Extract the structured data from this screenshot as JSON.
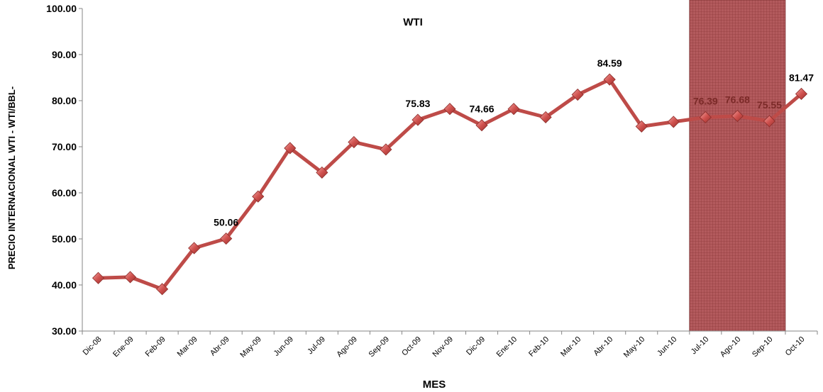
{
  "chart_data": {
    "type": "line",
    "title": "WTI",
    "xlabel": "MES",
    "ylabel": "PRECIO INTERNACIONAL WTI - WTI/BBL-",
    "ylim": [
      30,
      100
    ],
    "yticks": [
      "30.00",
      "40.00",
      "50.00",
      "60.00",
      "70.00",
      "80.00",
      "90.00",
      "100.00"
    ],
    "grid": false,
    "categories": [
      "Dic-08",
      "Ene-09",
      "Feb-09",
      "Mar-09",
      "Abr-09",
      "May-09",
      "Jun-09",
      "Jul-09",
      "Ago-09",
      "Sep-09",
      "Oct-09",
      "Nov-09",
      "Dic-09",
      "Ene-10",
      "Feb-10",
      "Mar-10",
      "Abr-10",
      "May-10",
      "Jun-10",
      "Jul-10",
      "Ago-10",
      "Sep-10",
      "Oct-10"
    ],
    "series": [
      {
        "name": "",
        "values": [
          41.5,
          41.7,
          39.1,
          48.0,
          50.06,
          59.2,
          69.7,
          64.4,
          71.0,
          69.4,
          75.83,
          78.2,
          74.66,
          78.2,
          76.4,
          81.3,
          84.59,
          74.4,
          75.4,
          76.39,
          76.68,
          75.55,
          81.47
        ]
      }
    ],
    "data_labels": [
      {
        "index": 4,
        "text": "50.06"
      },
      {
        "index": 10,
        "text": "75.83"
      },
      {
        "index": 12,
        "text": "74.66"
      },
      {
        "index": 16,
        "text": "84.59"
      },
      {
        "index": 19,
        "text": "76.39"
      },
      {
        "index": 20,
        "text": "76.68"
      },
      {
        "index": 21,
        "text": "75.55"
      },
      {
        "index": 22,
        "text": "81.47"
      }
    ],
    "highlight": {
      "from": "Jul-10",
      "to": "Sep-10"
    },
    "colors": {
      "line": "#be4b48",
      "marker": "#c0504d",
      "highlight": "#b0575a",
      "label_dark": "#000000",
      "label_in_highlight": "#7b2a28"
    }
  }
}
